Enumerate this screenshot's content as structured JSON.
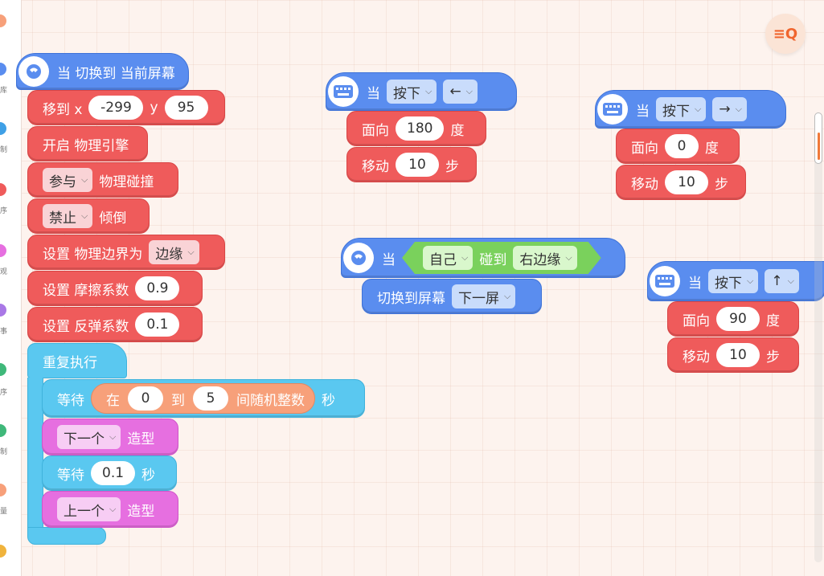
{
  "toolbar": {
    "search_icon_label": "≡Q"
  },
  "sidebar_glyphs": [
    "库",
    "制",
    "序",
    "观",
    "事",
    "序",
    "制",
    "量"
  ],
  "sidebar_colors": [
    "#f7a07a",
    "#5a8def",
    "#3fa0e6",
    "#ef5b5b",
    "#e66fe0",
    "#a978e6",
    "#3fb87a",
    "#3fb87a",
    "#f7a07a",
    "#f0b33c"
  ],
  "colors": {
    "motion_red": "#ef5b5b",
    "event_blue": "#5a8def",
    "control_cyan": "#5ac8f0",
    "looks_pink": "#e66fe0",
    "operator_orange": "#f7a07a",
    "sensing_green": "#7ad15c"
  },
  "script1": {
    "hat": {
      "label": "当 切换到 当前屏幕",
      "icon": "screen-icon"
    },
    "goto": {
      "label": "移到 x",
      "x": "-299",
      "ylabel": "y",
      "y": "95"
    },
    "physics_on": {
      "label": "开启 物理引擎"
    },
    "collision": {
      "option": "参与",
      "label": "物理碰撞"
    },
    "tilt": {
      "option": "禁止",
      "label": "倾倒"
    },
    "boundary": {
      "label": "设置 物理边界为",
      "option": "边缘"
    },
    "friction": {
      "label": "设置 摩擦系数",
      "value": "0.9"
    },
    "bounce": {
      "label": "设置 反弹系数",
      "value": "0.1"
    },
    "forever": {
      "label": "重复执行"
    },
    "wait_random": {
      "label": "等待",
      "in": "在",
      "from": "0",
      "to_label": "到",
      "to": "5",
      "suffix": "间随机整数",
      "unit": "秒"
    },
    "next_costume": {
      "option": "下一个",
      "label": "造型"
    },
    "wait": {
      "label": "等待",
      "value": "0.1",
      "unit": "秒"
    },
    "prev_costume": {
      "option": "上一个",
      "label": "造型"
    }
  },
  "script2": {
    "hat": {
      "when": "当",
      "event": "按下",
      "key": "←"
    },
    "face": {
      "label": "面向",
      "value": "180",
      "unit": "度"
    },
    "move": {
      "label": "移动",
      "value": "10",
      "unit": "步"
    }
  },
  "script3": {
    "hat": {
      "when": "当",
      "event": "按下",
      "key": "→"
    },
    "face": {
      "label": "面向",
      "value": "0",
      "unit": "度"
    },
    "move": {
      "label": "移动",
      "value": "10",
      "unit": "步"
    }
  },
  "script4": {
    "hat": {
      "when": "当",
      "subject": "自己",
      "touch": "碰到",
      "target": "右边缘"
    },
    "switch": {
      "label": "切换到屏幕",
      "option": "下一屏"
    }
  },
  "script5": {
    "hat": {
      "when": "当",
      "event": "按下",
      "key": "↑"
    },
    "face": {
      "label": "面向",
      "value": "90",
      "unit": "度"
    },
    "move": {
      "label": "移动",
      "value": "10",
      "unit": "步"
    }
  }
}
